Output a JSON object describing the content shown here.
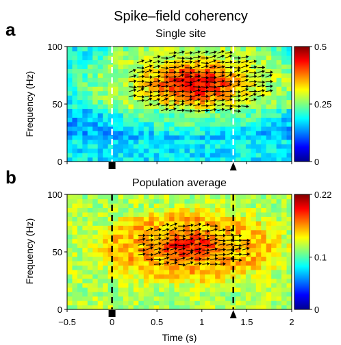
{
  "chart_data": [
    {
      "type": "heatmap",
      "panel_label": "a",
      "title": "Spike–field coherency",
      "subtitle": "Single site",
      "xlabel": "",
      "ylabel": "Frequency (Hz)",
      "xlim": [
        -0.5,
        2
      ],
      "ylim": [
        0,
        100
      ],
      "yticks": [
        0,
        50,
        100
      ],
      "colorbar": {
        "min": 0,
        "max": 0.5,
        "ticks": [
          "0",
          "0.25",
          "0.5"
        ],
        "colormap": "jet"
      },
      "markers": [
        {
          "x": 0,
          "style": "dashed",
          "color": "#ffffff",
          "symbol": "square"
        },
        {
          "x": 1.35,
          "style": "dashed",
          "color": "#ffffff",
          "symbol": "triangle"
        }
      ],
      "high_coherence_region": {
        "x": [
          0.1,
          1.75
        ],
        "y": [
          40,
          97
        ],
        "peak": 0.45
      },
      "background_level": 0.18
    },
    {
      "type": "heatmap",
      "panel_label": "b",
      "title": "Population average",
      "xlabel": "Time (s)",
      "ylabel": "Frequency (Hz)",
      "xlim": [
        -0.5,
        2
      ],
      "ylim": [
        0,
        100
      ],
      "xticks": [
        "-0.5",
        "0",
        "0.5",
        "1",
        "1.5",
        "2"
      ],
      "yticks": [
        0,
        50,
        100
      ],
      "colorbar": {
        "min": 0,
        "max": 0.22,
        "ticks": [
          "0",
          "0.1",
          "0.22"
        ],
        "colormap": "jet"
      },
      "markers": [
        {
          "x": 0,
          "style": "dashed",
          "color": "#000000",
          "symbol": "square"
        },
        {
          "x": 1.35,
          "style": "dashed",
          "color": "#000000",
          "symbol": "triangle"
        }
      ],
      "high_coherence_region": {
        "x": [
          0.2,
          1.5
        ],
        "y": [
          35,
          75
        ],
        "peak": 0.19
      },
      "background_level": 0.12
    }
  ]
}
